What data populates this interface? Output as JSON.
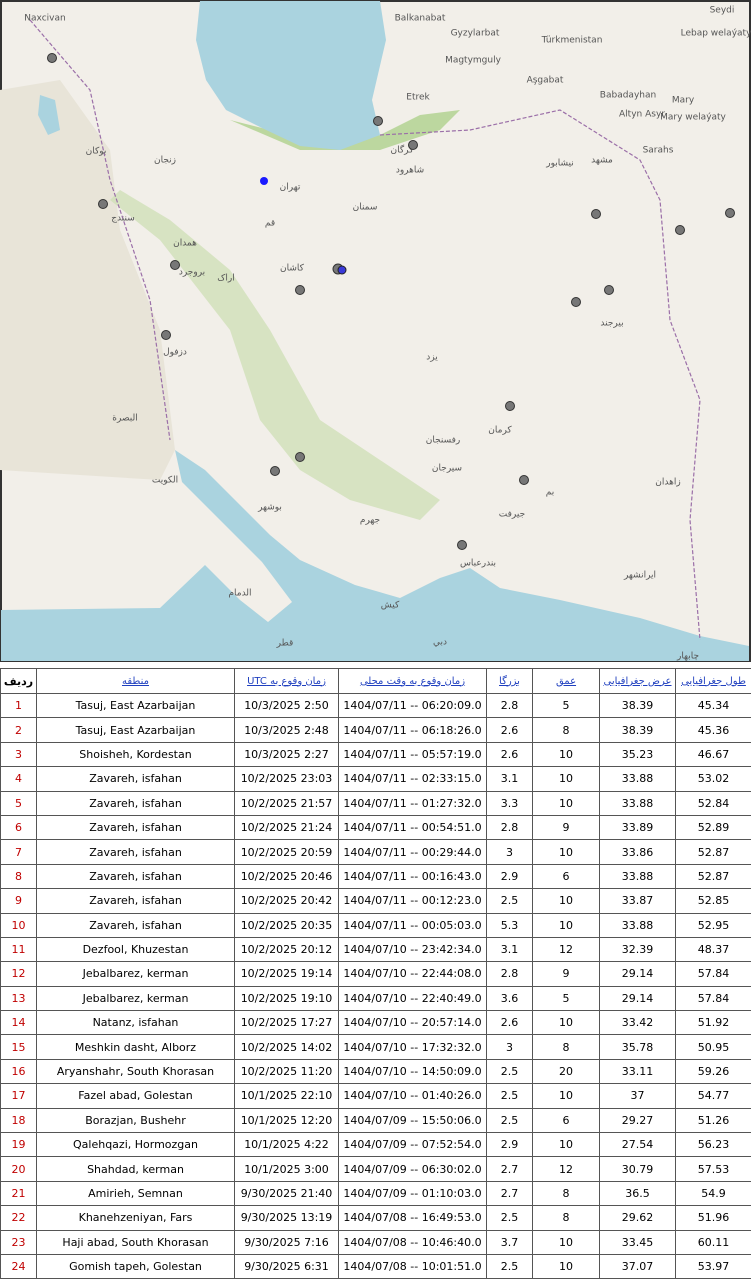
{
  "map": {
    "labels": [
      "Naxcivan",
      "Balkanabat",
      "Gyzylarbat",
      "Türkmenistan",
      "Magtymguly",
      "Aşgabat",
      "Etrek",
      "Babadayhan",
      "Mary",
      "Altyn Asyr",
      "Mary welaýaty",
      "Sarahs",
      "Seydi",
      "Lebap welaýaty",
      "تهران",
      "قم",
      "کاشان",
      "یزد",
      "کرمان",
      "رفسنجان",
      "سیرجان",
      "بم",
      "جیرفت",
      "زاهدان",
      "بیرجند",
      "مشهد",
      "نیشابور",
      "سمنان",
      "شاهرود",
      "گرگان",
      "اراک",
      "بروجرد",
      "سنندج",
      "همدان",
      "زنجان",
      "بوکان",
      "دزفول",
      "البصرة",
      "الكويت",
      "الدمام",
      "قطر",
      "دبي",
      "چابهار",
      "کیش",
      "بندرعباس",
      "ایرانشهر",
      "بوشهر",
      "جهرم"
    ]
  },
  "table": {
    "headers": [
      "ردیف",
      "منطقه",
      "زمان وقوع به UTC",
      "زمان وقوع به وقت محلی",
      "بزرگا",
      "عمق",
      "عرض جغرافیایی",
      "طول جغرافیایی"
    ],
    "rows": [
      [
        1,
        "Tasuj, East Azarbaijan",
        "10/3/2025 2:50",
        "1404/07/11 -- 06:20:09.0",
        2.8,
        5,
        38.39,
        45.34
      ],
      [
        2,
        "Tasuj, East Azarbaijan",
        "10/3/2025 2:48",
        "1404/07/11 -- 06:18:26.0",
        2.6,
        8,
        38.39,
        45.36
      ],
      [
        3,
        "Shoisheh, Kordestan",
        "10/3/2025 2:27",
        "1404/07/11 -- 05:57:19.0",
        2.6,
        10,
        35.23,
        46.67
      ],
      [
        4,
        "Zavareh, isfahan",
        "10/2/2025 23:03",
        "1404/07/11 -- 02:33:15.0",
        3.1,
        10,
        33.88,
        53.02
      ],
      [
        5,
        "Zavareh, isfahan",
        "10/2/2025 21:57",
        "1404/07/11 -- 01:27:32.0",
        3.3,
        10,
        33.88,
        52.84
      ],
      [
        6,
        "Zavareh, isfahan",
        "10/2/2025 21:24",
        "1404/07/11 -- 00:54:51.0",
        2.8,
        9,
        33.89,
        52.89
      ],
      [
        7,
        "Zavareh, isfahan",
        "10/2/2025 20:59",
        "1404/07/11 -- 00:29:44.0",
        3,
        10,
        33.86,
        52.87
      ],
      [
        8,
        "Zavareh, isfahan",
        "10/2/2025 20:46",
        "1404/07/11 -- 00:16:43.0",
        2.9,
        6,
        33.88,
        52.87
      ],
      [
        9,
        "Zavareh, isfahan",
        "10/2/2025 20:42",
        "1404/07/11 -- 00:12:23.0",
        2.5,
        10,
        33.87,
        52.85
      ],
      [
        10,
        "Zavareh, isfahan",
        "10/2/2025 20:35",
        "1404/07/11 -- 00:05:03.0",
        5.3,
        10,
        33.88,
        52.95
      ],
      [
        11,
        "Dezfool, Khuzestan",
        "10/2/2025 20:12",
        "1404/07/10 -- 23:42:34.0",
        3.1,
        12,
        32.39,
        48.37
      ],
      [
        12,
        "Jebalbarez, kerman",
        "10/2/2025 19:14",
        "1404/07/10 -- 22:44:08.0",
        2.8,
        9,
        29.14,
        57.84
      ],
      [
        13,
        "Jebalbarez, kerman",
        "10/2/2025 19:10",
        "1404/07/10 -- 22:40:49.0",
        3.6,
        5,
        29.14,
        57.84
      ],
      [
        14,
        "Natanz, isfahan",
        "10/2/2025 17:27",
        "1404/07/10 -- 20:57:14.0",
        2.6,
        10,
        33.42,
        51.92
      ],
      [
        15,
        "Meshkin dasht, Alborz",
        "10/2/2025 14:02",
        "1404/07/10 -- 17:32:32.0",
        3,
        8,
        35.78,
        50.95
      ],
      [
        16,
        "Aryanshahr, South Khorasan",
        "10/2/2025 11:20",
        "1404/07/10 -- 14:50:09.0",
        2.5,
        20,
        33.11,
        59.26
      ],
      [
        17,
        "Fazel abad, Golestan",
        "10/1/2025 22:10",
        "1404/07/10 -- 01:40:26.0",
        2.5,
        10,
        37,
        54.77
      ],
      [
        18,
        "Borazjan, Bushehr",
        "10/1/2025 12:20",
        "1404/07/09 -- 15:50:06.0",
        2.5,
        6,
        29.27,
        51.26
      ],
      [
        19,
        "Qalehqazi, Hormozgan",
        "10/1/2025 4:22",
        "1404/07/09 -- 07:52:54.0",
        2.9,
        10,
        27.54,
        56.23
      ],
      [
        20,
        "Shahdad, kerman",
        "10/1/2025 3:00",
        "1404/07/09 -- 06:30:02.0",
        2.7,
        12,
        30.79,
        57.53
      ],
      [
        21,
        "Amirieh, Semnan",
        "9/30/2025 21:40",
        "1404/07/09 -- 01:10:03.0",
        2.7,
        8,
        36.5,
        54.9
      ],
      [
        22,
        "Khanehzeniyan, Fars",
        "9/30/2025 13:19",
        "1404/07/08 -- 16:49:53.0",
        2.5,
        8,
        29.62,
        51.96
      ],
      [
        23,
        "Haji abad, South Khorasan",
        "9/30/2025 7:16",
        "1404/07/08 -- 10:46:40.0",
        3.7,
        10,
        33.45,
        60.11
      ],
      [
        24,
        "Gomish tapeh, Golestan",
        "9/30/2025 6:31",
        "1404/07/08 -- 10:01:51.0",
        2.5,
        10,
        37.07,
        53.97
      ]
    ]
  }
}
